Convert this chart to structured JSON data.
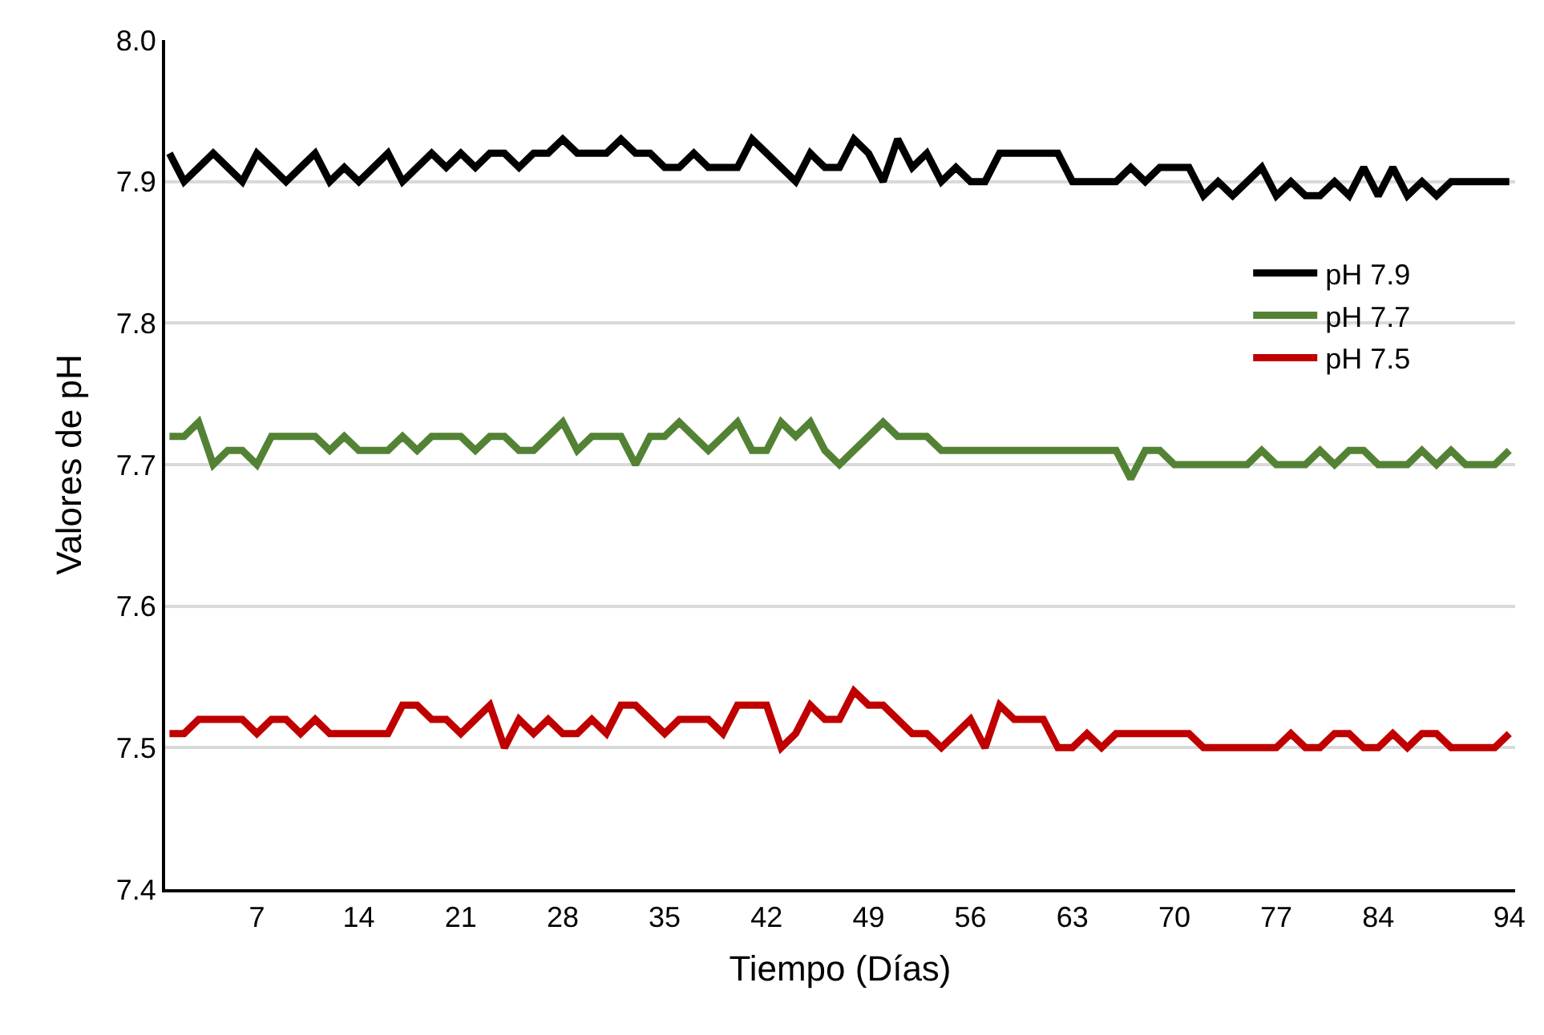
{
  "chart_data": {
    "type": "line",
    "xlabel": "Tiempo (Días)",
    "ylabel": "Valores de pH",
    "categories": [
      null,
      null,
      null,
      null,
      null,
      null,
      "7",
      null,
      null,
      null,
      null,
      null,
      null,
      "14",
      null,
      null,
      null,
      null,
      null,
      null,
      "21",
      null,
      null,
      null,
      null,
      null,
      null,
      "28",
      null,
      null,
      null,
      null,
      null,
      null,
      "35",
      null,
      null,
      null,
      null,
      null,
      null,
      "42",
      null,
      null,
      null,
      null,
      null,
      null,
      "49",
      null,
      null,
      null,
      null,
      null,
      null,
      "56",
      null,
      null,
      null,
      null,
      null,
      null,
      "63",
      null,
      null,
      null,
      null,
      null,
      null,
      "70",
      null,
      null,
      null,
      null,
      null,
      null,
      "77",
      null,
      null,
      null,
      null,
      null,
      null,
      "84",
      null,
      null,
      null,
      null,
      null,
      null,
      null,
      null,
      "94"
    ],
    "series": [
      {
        "name": "pH 7.9",
        "color": "#000000",
        "values": [
          7.92,
          7.9,
          7.91,
          7.92,
          7.91,
          7.9,
          7.92,
          7.91,
          7.9,
          7.91,
          7.92,
          7.9,
          7.91,
          7.9,
          7.91,
          7.92,
          7.9,
          7.91,
          7.92,
          7.91,
          7.92,
          7.91,
          7.92,
          7.92,
          7.91,
          7.92,
          7.92,
          7.93,
          7.92,
          7.92,
          7.92,
          7.93,
          7.92,
          7.92,
          7.91,
          7.91,
          7.92,
          7.91,
          7.91,
          7.91,
          7.93,
          7.92,
          7.91,
          7.9,
          7.92,
          7.91,
          7.91,
          7.93,
          7.92,
          7.9,
          7.93,
          7.91,
          7.92,
          7.9,
          7.91,
          7.9,
          7.9,
          7.92,
          7.92,
          7.92,
          7.92,
          7.92,
          7.9,
          7.9,
          7.9,
          7.9,
          7.91,
          7.9,
          7.91,
          7.91,
          7.91,
          7.89,
          7.9,
          7.89,
          7.9,
          7.91,
          7.89,
          7.9,
          7.89,
          7.89,
          7.9,
          7.89,
          7.91,
          7.89,
          7.91,
          7.89,
          7.9,
          7.89,
          7.9,
          7.9,
          7.9,
          7.9,
          7.9
        ]
      },
      {
        "name": "pH 7.7",
        "color": "#548235",
        "values": [
          7.72,
          7.72,
          7.73,
          7.7,
          7.71,
          7.71,
          7.7,
          7.72,
          7.72,
          7.72,
          7.72,
          7.71,
          7.72,
          7.71,
          7.71,
          7.71,
          7.72,
          7.71,
          7.72,
          7.72,
          7.72,
          7.71,
          7.72,
          7.72,
          7.71,
          7.71,
          7.72,
          7.73,
          7.71,
          7.72,
          7.72,
          7.72,
          7.7,
          7.72,
          7.72,
          7.73,
          7.72,
          7.71,
          7.72,
          7.73,
          7.71,
          7.71,
          7.73,
          7.72,
          7.73,
          7.71,
          7.7,
          7.71,
          7.72,
          7.73,
          7.72,
          7.72,
          7.72,
          7.71,
          7.71,
          7.71,
          7.71,
          7.71,
          7.71,
          7.71,
          7.71,
          7.71,
          7.71,
          7.71,
          7.71,
          7.71,
          7.69,
          7.71,
          7.71,
          7.7,
          7.7,
          7.7,
          7.7,
          7.7,
          7.7,
          7.71,
          7.7,
          7.7,
          7.7,
          7.71,
          7.7,
          7.71,
          7.71,
          7.7,
          7.7,
          7.7,
          7.71,
          7.7,
          7.71,
          7.7,
          7.7,
          7.7,
          7.71
        ]
      },
      {
        "name": "pH 7.5",
        "color": "#c00000",
        "values": [
          7.51,
          7.51,
          7.52,
          7.52,
          7.52,
          7.52,
          7.51,
          7.52,
          7.52,
          7.51,
          7.52,
          7.51,
          7.51,
          7.51,
          7.51,
          7.51,
          7.53,
          7.53,
          7.52,
          7.52,
          7.51,
          7.52,
          7.53,
          7.5,
          7.52,
          7.51,
          7.52,
          7.51,
          7.51,
          7.52,
          7.51,
          7.53,
          7.53,
          7.52,
          7.51,
          7.52,
          7.52,
          7.52,
          7.51,
          7.53,
          7.53,
          7.53,
          7.5,
          7.51,
          7.53,
          7.52,
          7.52,
          7.54,
          7.53,
          7.53,
          7.52,
          7.51,
          7.51,
          7.5,
          7.51,
          7.52,
          7.5,
          7.53,
          7.52,
          7.52,
          7.52,
          7.5,
          7.5,
          7.51,
          7.5,
          7.51,
          7.51,
          7.51,
          7.51,
          7.51,
          7.51,
          7.5,
          7.5,
          7.5,
          7.5,
          7.5,
          7.5,
          7.51,
          7.5,
          7.5,
          7.51,
          7.51,
          7.5,
          7.5,
          7.51,
          7.5,
          7.51,
          7.51,
          7.5,
          7.5,
          7.5,
          7.5,
          7.51
        ]
      }
    ],
    "ylim": [
      7.4,
      8.0
    ],
    "yticks": [
      7.4,
      7.5,
      7.6,
      7.7,
      7.8,
      7.9,
      {
        "value": 8.0,
        "label": "8.0"
      }
    ],
    "grid": "y",
    "legend": "top right",
    "marker": "none",
    "line_style": "solid"
  }
}
